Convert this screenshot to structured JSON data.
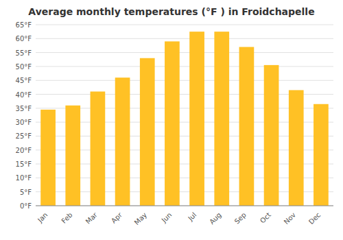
{
  "chart_data": {
    "type": "bar",
    "title": "Average monthly temperatures (°F ) in Froidchapelle",
    "categories": [
      "Jan",
      "Feb",
      "Mar",
      "Apr",
      "May",
      "Jun",
      "Jul",
      "Aug",
      "Sep",
      "Oct",
      "Nov",
      "Dec"
    ],
    "values": [
      34.5,
      36.0,
      41.0,
      46.0,
      53.0,
      59.0,
      62.5,
      62.5,
      57.0,
      50.5,
      41.5,
      36.5
    ],
    "color": "#FFC125",
    "ylim": [
      0,
      65
    ],
    "yticks": [
      {
        "value": 0,
        "label": "0°F"
      },
      {
        "value": 5,
        "label": "5°F"
      },
      {
        "value": 10,
        "label": "10°F"
      },
      {
        "value": 15,
        "label": "15°F"
      },
      {
        "value": 20,
        "label": "20°F"
      },
      {
        "value": 25,
        "label": "25°F"
      },
      {
        "value": 30,
        "label": "30°F"
      },
      {
        "value": 35,
        "label": "35°F"
      },
      {
        "value": 40,
        "label": "40°F"
      },
      {
        "value": 45,
        "label": "45°F"
      },
      {
        "value": 50,
        "label": "50°F"
      },
      {
        "value": 55,
        "label": "55°F"
      },
      {
        "value": 60,
        "label": "60°F"
      },
      {
        "value": 65,
        "label": "65°F"
      }
    ],
    "grid": true
  }
}
